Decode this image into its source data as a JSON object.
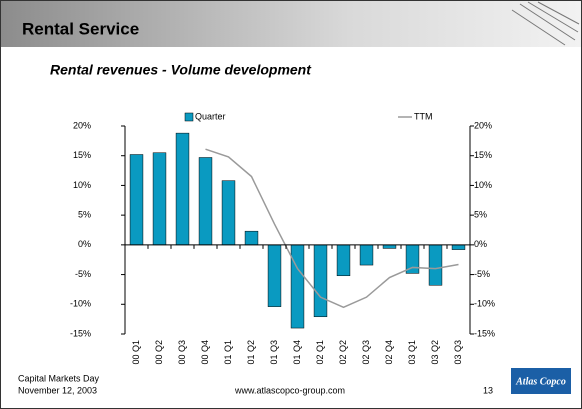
{
  "slide": {
    "title": "Rental Service",
    "subtitle": "Rental revenues - Volume development",
    "footer_left": [
      "Capital Markets Day",
      "November 12, 2003"
    ],
    "url": "www.atlascopco-group.com",
    "page_number": "13",
    "logo": "Atlas Copco"
  },
  "chart_data": {
    "type": "bar-line",
    "categories": [
      "00 Q1",
      "00 Q2",
      "00 Q3",
      "00 Q4",
      "01 Q1",
      "01 Q2",
      "01 Q3",
      "01 Q4",
      "02 Q1",
      "02 Q2",
      "02 Q3",
      "02 Q4",
      "03 Q1",
      "03 Q2",
      "03 Q3"
    ],
    "series": [
      {
        "name": "Quarter",
        "type": "bar",
        "color": "#0a9ac1",
        "values": [
          15.2,
          15.5,
          18.8,
          14.7,
          10.8,
          2.3,
          -10.4,
          -14,
          -12.1,
          -5.2,
          -3.4,
          -0.6,
          -4.8,
          -6.8,
          -0.8
        ]
      },
      {
        "name": "TTM",
        "type": "line",
        "axis": "y2",
        "color": "#9a9a9a",
        "values": [
          null,
          null,
          null,
          16.1,
          14.8,
          11.5,
          3.5,
          -4,
          -8.8,
          -10.5,
          -8.8,
          -5.5,
          -3.8,
          -4,
          -3.3
        ]
      }
    ],
    "ylim": [
      -15,
      20
    ],
    "yticks": [
      {
        "value": -15,
        "label": "-15%"
      },
      {
        "value": -10,
        "label": "-10%"
      },
      {
        "value": -5,
        "label": "-5%"
      },
      {
        "value": 0,
        "label": "0%"
      },
      {
        "value": 5,
        "label": "5%"
      },
      {
        "value": 10,
        "label": "10%"
      },
      {
        "value": 15,
        "label": "15%"
      },
      {
        "value": 20,
        "label": "20%"
      }
    ],
    "y2lim": [
      -15,
      20
    ],
    "y2ticks": [
      {
        "value": -15,
        "label": "-15%"
      },
      {
        "value": -10,
        "label": "-10%"
      },
      {
        "value": -5,
        "label": "-5%"
      },
      {
        "value": 0,
        "label": "0%"
      },
      {
        "value": 5,
        "label": "5%"
      },
      {
        "value": 10,
        "label": "10%"
      },
      {
        "value": 15,
        "label": "15%"
      },
      {
        "value": 20,
        "label": "20%"
      }
    ]
  }
}
